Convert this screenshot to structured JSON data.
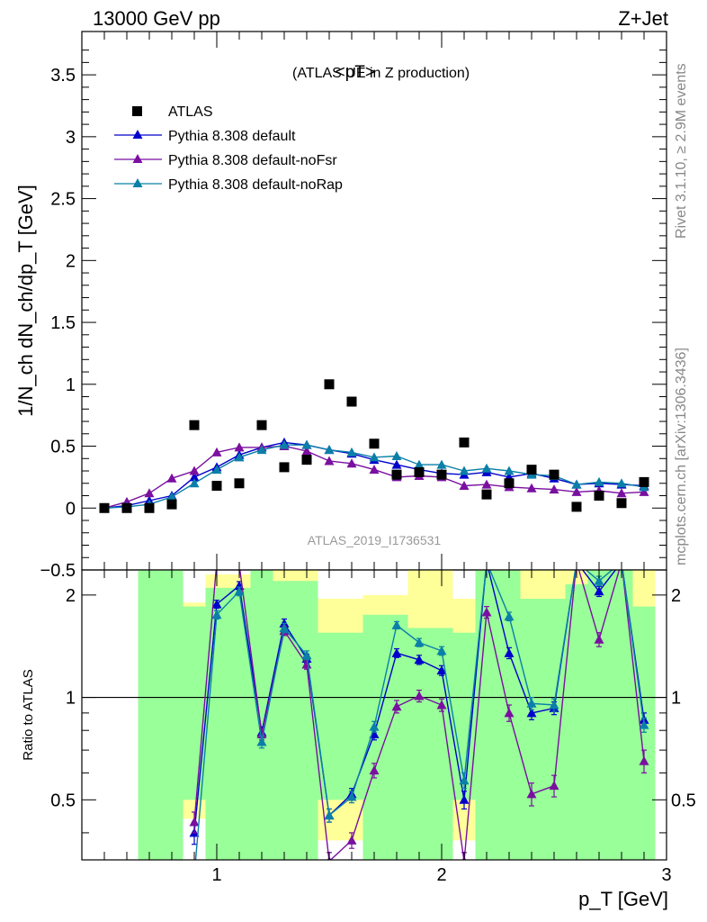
{
  "header": {
    "left_label": "13000 GeV pp",
    "right_label": "Z+Jet",
    "rivet_label": "Rivet 3.1.10, ≥ 2.9M events",
    "mcplots_label": "mcplots.cern.ch [arXiv:1306.3436]",
    "analysis_label": "ATLAS_2019_I1736531"
  },
  "chart_data": [
    {
      "type": "scatter",
      "title": "<pT> (ATLAS UE in Z production)",
      "title_main": "<pT>",
      "title_sub": "(ATLAS UE in Z production)",
      "ylabel": "1/N_ch dN_ch/dp_T [GeV]",
      "xlim": [
        0.4,
        3.0
      ],
      "ylim": [
        -0.5,
        3.85
      ],
      "yticks": [
        "0",
        "0.5",
        "1",
        "1.5",
        "2",
        "2.5",
        "3",
        "3.5",
        "−0.5"
      ],
      "ytick_values": [
        0,
        0.5,
        1,
        1.5,
        2,
        2.5,
        3,
        3.5,
        -0.5
      ],
      "legend_position": "top-left",
      "x": [
        0.5,
        0.6,
        0.7,
        0.8,
        0.9,
        1.0,
        1.1,
        1.2,
        1.3,
        1.4,
        1.5,
        1.6,
        1.7,
        1.8,
        1.9,
        2.0,
        2.1,
        2.2,
        2.3,
        2.4,
        2.5,
        2.6,
        2.7,
        2.8,
        2.9
      ],
      "series": [
        {
          "name": "ATLAS",
          "color": "#000000",
          "marker": "square",
          "values": [
            0.0,
            0.0,
            0.0,
            0.03,
            0.67,
            0.18,
            0.2,
            0.67,
            0.33,
            0.39,
            1.0,
            0.86,
            0.52,
            0.27,
            0.29,
            0.27,
            0.53,
            0.11,
            0.2,
            0.31,
            0.27,
            0.01,
            0.1,
            0.04,
            0.21
          ]
        },
        {
          "name": "Pythia 8.308 default",
          "color": "#0000cc",
          "marker": "triangle",
          "values": [
            0.0,
            0.02,
            0.06,
            0.1,
            0.25,
            0.33,
            0.43,
            0.49,
            0.53,
            0.51,
            0.47,
            0.44,
            0.39,
            0.35,
            0.31,
            0.28,
            0.27,
            0.29,
            0.25,
            0.28,
            0.24,
            0.19,
            0.2,
            0.19,
            0.18
          ]
        },
        {
          "name": "Pythia 8.308 default-noFsr",
          "color": "#7a0fa0",
          "marker": "triangle",
          "values": [
            0.0,
            0.05,
            0.12,
            0.24,
            0.3,
            0.45,
            0.49,
            0.49,
            0.5,
            0.46,
            0.38,
            0.36,
            0.31,
            0.25,
            0.26,
            0.25,
            0.18,
            0.19,
            0.17,
            0.16,
            0.15,
            0.13,
            0.14,
            0.12,
            0.13
          ]
        },
        {
          "name": "Pythia 8.308 default-noRap",
          "color": "#0b7fa8",
          "marker": "triangle",
          "values": [
            0.0,
            0.01,
            0.03,
            0.09,
            0.2,
            0.31,
            0.41,
            0.47,
            0.51,
            0.51,
            0.47,
            0.45,
            0.41,
            0.42,
            0.35,
            0.35,
            0.3,
            0.32,
            0.3,
            0.27,
            0.26,
            0.19,
            0.21,
            0.2,
            0.17
          ]
        }
      ]
    },
    {
      "type": "line",
      "ylabel": "Ratio to ATLAS",
      "xlabel": "p_T [GeV]",
      "xlim": [
        0.4,
        3.0
      ],
      "ylim": [
        0.333,
        2.37
      ],
      "log_y": true,
      "xticks": [
        "1",
        "2",
        "3"
      ],
      "xtick_values": [
        1,
        2,
        3
      ],
      "yticks": [
        "0.5",
        "1",
        "2"
      ],
      "ytick_values": [
        0.5,
        1,
        2
      ],
      "reference_line": 1,
      "bands": {
        "x_edges": [
          0.65,
          0.75,
          0.85,
          0.95,
          1.05,
          1.15,
          1.25,
          1.35,
          1.45,
          1.55,
          1.65,
          1.75,
          1.85,
          1.95,
          2.05,
          2.15,
          2.25,
          2.35,
          2.45,
          2.55,
          2.65,
          2.75,
          2.85,
          2.95
        ],
        "green": [
          [
            0.33,
            2.4
          ],
          [
            0.33,
            2.4
          ],
          [
            0.5,
            1.85
          ],
          [
            0.33,
            2.1
          ],
          [
            0.33,
            2.1
          ],
          [
            0.33,
            2.4
          ],
          [
            0.33,
            2.2
          ],
          [
            0.33,
            2.2
          ],
          [
            0.5,
            1.55
          ],
          [
            0.5,
            1.55
          ],
          [
            0.33,
            1.75
          ],
          [
            0.33,
            1.75
          ],
          [
            0.33,
            1.6
          ],
          [
            0.33,
            1.6
          ],
          [
            0.5,
            1.55
          ],
          [
            0.33,
            2.4
          ],
          [
            0.33,
            2.4
          ],
          [
            0.33,
            1.95
          ],
          [
            0.33,
            1.95
          ],
          [
            0.33,
            2.15
          ],
          [
            0.33,
            2.4
          ],
          [
            0.33,
            2.4
          ],
          [
            0.33,
            1.85
          ]
        ],
        "yellow": [
          [
            0.33,
            2.4
          ],
          [
            0.33,
            2.4
          ],
          [
            0.44,
            1.9
          ],
          [
            0.33,
            2.3
          ],
          [
            0.33,
            2.3
          ],
          [
            0.33,
            2.4
          ],
          [
            0.33,
            2.4
          ],
          [
            0.33,
            2.4
          ],
          [
            0.38,
            1.95
          ],
          [
            0.38,
            1.95
          ],
          [
            0.33,
            2.0
          ],
          [
            0.33,
            2.0
          ],
          [
            0.33,
            2.4
          ],
          [
            0.33,
            2.4
          ],
          [
            0.38,
            1.95
          ],
          [
            0.33,
            2.4
          ],
          [
            0.33,
            2.4
          ],
          [
            0.33,
            2.4
          ],
          [
            0.33,
            2.4
          ],
          [
            0.33,
            2.4
          ],
          [
            0.33,
            2.4
          ],
          [
            0.33,
            2.4
          ],
          [
            0.33,
            2.4
          ]
        ]
      },
      "x": [
        0.9,
        1.0,
        1.1,
        1.2,
        1.3,
        1.4,
        1.5,
        1.6,
        1.7,
        1.8,
        1.9,
        2.0,
        2.1,
        2.2,
        2.3,
        2.4,
        2.5,
        2.6,
        2.7,
        2.8,
        2.9
      ],
      "series": [
        {
          "name": "Pythia 8.308 default",
          "color": "#0000cc",
          "values": [
            0.4,
            1.88,
            2.13,
            0.79,
            1.65,
            1.3,
            0.45,
            0.52,
            0.78,
            1.35,
            1.29,
            1.2,
            0.5,
            2.5,
            1.35,
            0.9,
            0.93,
            2.5,
            2.05,
            2.5,
            0.86
          ],
          "errors": [
            0.03,
            0.05,
            0.06,
            0.03,
            0.05,
            0.04,
            0.02,
            0.02,
            0.03,
            0.04,
            0.04,
            0.04,
            0.03,
            0.08,
            0.05,
            0.04,
            0.04,
            0.08,
            0.07,
            0.08,
            0.04
          ]
        },
        {
          "name": "Pythia 8.308 default-noFsr",
          "color": "#7a0fa0",
          "values": [
            0.43,
            2.5,
            2.45,
            0.78,
            1.57,
            1.25,
            0.33,
            0.38,
            0.61,
            0.94,
            1.01,
            0.95,
            0.33,
            1.78,
            0.9,
            0.52,
            0.55,
            2.5,
            1.48,
            2.5,
            0.65
          ],
          "errors": [
            0.03,
            0.08,
            0.08,
            0.03,
            0.05,
            0.04,
            0.02,
            0.02,
            0.03,
            0.04,
            0.04,
            0.04,
            0.02,
            0.07,
            0.05,
            0.04,
            0.04,
            0.08,
            0.07,
            0.08,
            0.05
          ]
        },
        {
          "name": "Pythia 8.308 default-noRap",
          "color": "#0b7fa8",
          "values": [
            0.3,
            1.75,
            2.05,
            0.74,
            1.6,
            1.33,
            0.45,
            0.51,
            0.82,
            1.63,
            1.45,
            1.37,
            0.57,
            2.5,
            1.73,
            0.96,
            0.95,
            2.5,
            2.2,
            2.5,
            0.83
          ],
          "errors": [
            0.03,
            0.05,
            0.06,
            0.03,
            0.05,
            0.04,
            0.02,
            0.02,
            0.03,
            0.04,
            0.04,
            0.04,
            0.03,
            0.08,
            0.05,
            0.04,
            0.04,
            0.08,
            0.07,
            0.08,
            0.04
          ]
        }
      ]
    }
  ]
}
